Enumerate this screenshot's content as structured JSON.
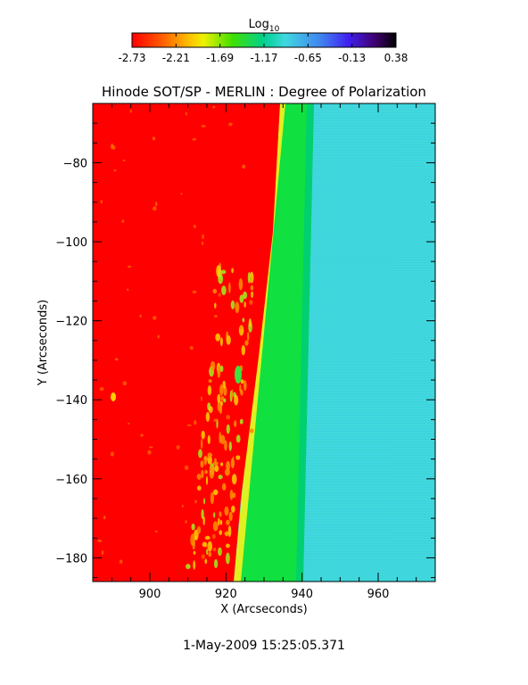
{
  "colorbar": {
    "label_main": "Log",
    "label_sub": "10",
    "ticks": [
      "-2.73",
      "-2.21",
      "-1.69",
      "-1.17",
      "-0.65",
      "-0.13",
      "0.38"
    ],
    "range": [
      -2.73,
      0.38
    ],
    "colormap_stops": [
      "#ff0000",
      "#ff8000",
      "#f0f000",
      "#40e000",
      "#00d080",
      "#40d0e0",
      "#4090f0",
      "#4020f0",
      "#400080",
      "#000000"
    ]
  },
  "chart_data": {
    "type": "heatmap",
    "title": "Hinode SOT/SP - MERLIN : Degree of Polarization",
    "xlabel": "X (Arcseconds)",
    "ylabel": "Y (Arcseconds)",
    "xlim": [
      885,
      975
    ],
    "ylim": [
      -186,
      -65
    ],
    "xticks": [
      900,
      920,
      940,
      960
    ],
    "yticks": [
      -80,
      -100,
      -120,
      -140,
      -160,
      -180
    ],
    "regions": [
      {
        "name": "disk",
        "value_log10": -2.73,
        "color": "#ff0000"
      },
      {
        "name": "limb band",
        "value_log10": -1.3,
        "color": "#20e020"
      },
      {
        "name": "off-limb",
        "value_log10": -1.0,
        "color": "#40d8d8"
      }
    ],
    "limb_x_at_y": [
      [
        -65,
        933
      ],
      [
        -186,
        921
      ]
    ]
  },
  "footer": {
    "timestamp": "1-May-2009 15:25:05.371"
  }
}
